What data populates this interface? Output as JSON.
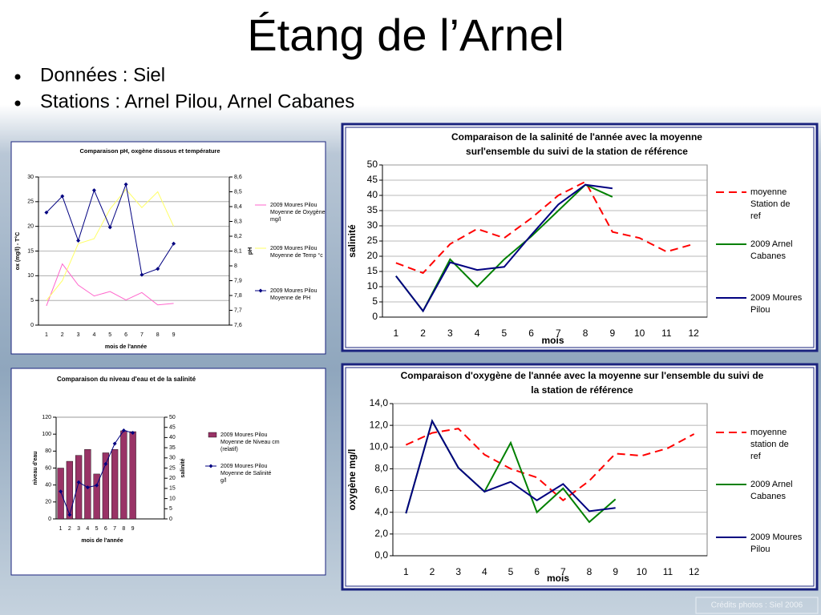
{
  "title": "Étang de l’Arnel",
  "bullets": [
    "Données : Siel",
    "Stations : Arnel Pilou, Arnel Cabanes"
  ],
  "credit": "Crédits photos : Siel 2006",
  "chart_data": [
    {
      "type": "line",
      "title": "Comparaison pH, oxgène dissous et température",
      "categories": [
        "1",
        "2",
        "3",
        "4",
        "5",
        "6",
        "7",
        "8",
        "9"
      ],
      "xlabel": "mois de l'année",
      "ylabel": "ox (mg/l) - T°C",
      "y2label": "pH",
      "ylim": [
        0,
        30
      ],
      "yticks": [
        0,
        5,
        10,
        15,
        20,
        25,
        30
      ],
      "y2lim": [
        7.6,
        8.6
      ],
      "y2ticks": [
        {
          "value": 7.6,
          "label": "7,6"
        },
        {
          "value": 7.7,
          "label": "7,7"
        },
        {
          "value": 7.8,
          "label": "7,8"
        },
        {
          "value": 7.9,
          "label": "7,9"
        },
        {
          "value": 8,
          "label": "8"
        },
        {
          "value": 8.1,
          "label": "8,1"
        },
        {
          "value": 8.2,
          "label": "8,2"
        },
        {
          "value": 8.3,
          "label": "8,3"
        },
        {
          "value": 8.4,
          "label": "8,4"
        },
        {
          "value": 8.5,
          "label": "8,5"
        },
        {
          "value": 8.6,
          "label": "8,6"
        }
      ],
      "grid": true,
      "legend": "right",
      "series": [
        {
          "name": "2009 Moures Pilou Moyenne de Oxygène mg/l",
          "color": "#ff66cc",
          "values": [
            3.9,
            12.4,
            8.1,
            5.9,
            6.8,
            5.1,
            6.6,
            4.1,
            4.4
          ]
        },
        {
          "name": "2009 Moures Pilou Moyenne de Temp °c",
          "color": "#ffff66",
          "values": [
            5,
            9,
            16.5,
            17.5,
            23.5,
            27.5,
            23.8,
            27,
            20
          ]
        },
        {
          "name": "2009 Moures Pilou Moyenne de PH",
          "color": "#000080",
          "axis": "y2",
          "marker": "diamond",
          "values": [
            8.36,
            8.47,
            8.17,
            8.51,
            8.26,
            8.55,
            7.94,
            7.98,
            8.15
          ]
        }
      ]
    },
    {
      "type": "combo",
      "title": "Comparaison du niveau d'eau et de la salinité",
      "categories": [
        "1",
        "2",
        "3",
        "4",
        "5",
        "6",
        "7",
        "8",
        "9"
      ],
      "xlabel": "mois de l'année",
      "ylabel": "niveau d'eau",
      "y2label": "salinité",
      "ylim": [
        0,
        120
      ],
      "yticks": [
        0,
        20,
        40,
        60,
        80,
        100,
        120
      ],
      "y2lim": [
        0,
        50
      ],
      "y2ticks": [
        0,
        5,
        10,
        15,
        20,
        25,
        30,
        35,
        40,
        45,
        50
      ],
      "grid": false,
      "legend": "right",
      "series": [
        {
          "name": "2009 Moures Pilou Moyenne de Niveau cm (relatif)",
          "type": "bar",
          "color": "#993366",
          "values": [
            60,
            68,
            75,
            82,
            53,
            78,
            82,
            104,
            103
          ]
        },
        {
          "name": "2009 Moures Pilou Moyenne de Salinité g/l",
          "type": "line",
          "axis": "y2",
          "marker": "diamond",
          "color": "#000080",
          "values": [
            13.5,
            2,
            18,
            15.5,
            16.5,
            27,
            37,
            43.5,
            42.3
          ]
        }
      ]
    },
    {
      "type": "line",
      "title": "Comparaison de la salinité de l'année avec la moyenne surl'ensemble du suivi de la station de référence",
      "categories": [
        "1",
        "2",
        "3",
        "4",
        "5",
        "6",
        "7",
        "8",
        "9",
        "10",
        "11",
        "12"
      ],
      "xlabel": "mois",
      "ylabel": "salinité",
      "ylim": [
        0,
        50
      ],
      "yticks": [
        0,
        5,
        10,
        15,
        20,
        25,
        30,
        35,
        40,
        45,
        50
      ],
      "grid": true,
      "legend": "right",
      "series": [
        {
          "name": "moyenne Station de ref",
          "color": "#ff0000",
          "style": "dashed",
          "values": [
            17.8,
            14.5,
            24,
            29,
            26,
            32.5,
            40,
            44.5,
            28,
            26,
            21.5,
            24
          ]
        },
        {
          "name": "2009 Arnel Cabanes",
          "color": "#008000",
          "values": [
            13.5,
            2,
            19,
            10,
            19,
            26.5,
            35,
            43.5,
            39.5,
            null,
            null,
            null
          ]
        },
        {
          "name": "2009 Moures Pilou",
          "color": "#000080",
          "values": [
            13.5,
            2,
            18,
            15.5,
            16.5,
            27,
            37,
            43.5,
            42.3,
            null,
            null,
            null
          ]
        }
      ]
    },
    {
      "type": "line",
      "title": "Comparaison d'oxygène de l'année avec la moyenne sur l'ensemble du suivi de la station de référence",
      "categories": [
        "1",
        "2",
        "3",
        "4",
        "5",
        "6",
        "7",
        "8",
        "9",
        "10",
        "11",
        "12"
      ],
      "xlabel": "mois",
      "ylabel": "oxygène mg/l",
      "ylim": [
        0,
        14
      ],
      "yticks": [
        {
          "value": 0,
          "label": "0,0"
        },
        {
          "value": 2,
          "label": "2,0"
        },
        {
          "value": 4,
          "label": "4,0"
        },
        {
          "value": 6,
          "label": "6,0"
        },
        {
          "value": 8,
          "label": "8,0"
        },
        {
          "value": 10,
          "label": "10,0"
        },
        {
          "value": 12,
          "label": "12,0"
        },
        {
          "value": 14,
          "label": "14,0"
        }
      ],
      "grid": true,
      "legend": "right",
      "series": [
        {
          "name": "moyenne station de ref",
          "color": "#ff0000",
          "style": "dashed",
          "values": [
            10.2,
            11.3,
            11.7,
            9.3,
            8,
            7.2,
            5.1,
            6.9,
            9.4,
            9.2,
            9.9,
            11.2
          ]
        },
        {
          "name": "2009 Arnel Cabanes",
          "color": "#008000",
          "values": [
            3.9,
            12.4,
            8.1,
            5.9,
            10.4,
            4,
            6.2,
            3.1,
            5.2,
            null,
            null,
            null
          ]
        },
        {
          "name": "2009 Moures Pilou",
          "color": "#000080",
          "values": [
            3.9,
            12.4,
            8.1,
            5.9,
            6.8,
            5.1,
            6.6,
            4.1,
            4.4,
            null,
            null,
            null
          ]
        }
      ]
    }
  ]
}
